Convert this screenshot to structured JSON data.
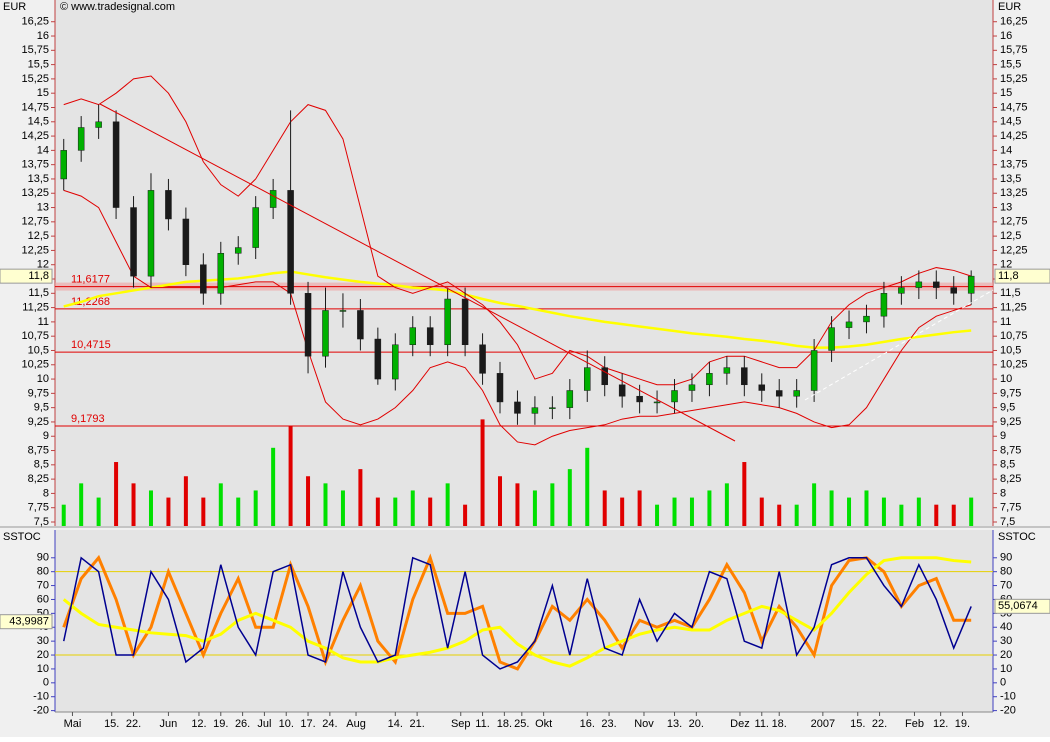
{
  "chart_data": {
    "type": "candlestick",
    "y_label": "EUR",
    "source": "© www.tradesignal.com",
    "x": [
      2,
      6,
      10,
      14,
      18,
      22,
      26,
      30,
      34,
      38,
      42,
      46,
      50,
      54,
      58,
      62,
      66,
      70,
      74,
      78,
      82,
      86,
      90,
      94,
      98,
      102,
      106,
      110,
      114,
      118,
      122,
      126,
      130,
      134,
      138,
      142,
      146,
      150,
      154,
      158,
      162,
      166,
      170,
      174,
      178,
      182,
      186,
      190,
      194,
      198,
      202,
      206,
      210
    ],
    "open": [
      13.5,
      14.0,
      14.4,
      14.5,
      13.0,
      11.8,
      13.3,
      12.8,
      12.0,
      11.5,
      12.2,
      12.3,
      13.0,
      13.3,
      11.5,
      10.4,
      11.2,
      11.2,
      10.7,
      10.0,
      10.6,
      10.9,
      10.6,
      11.4,
      10.6,
      10.1,
      9.6,
      9.4,
      9.5,
      9.5,
      9.8,
      10.2,
      9.9,
      9.7,
      9.6,
      9.6,
      9.8,
      9.9,
      10.1,
      10.2,
      9.9,
      9.8,
      9.7,
      9.8,
      10.5,
      10.9,
      11.0,
      11.1,
      11.5,
      11.6,
      11.7,
      11.6,
      11.5
    ],
    "high": [
      14.2,
      14.6,
      14.8,
      14.7,
      13.2,
      13.6,
      13.5,
      13.0,
      12.2,
      12.4,
      12.5,
      13.2,
      13.5,
      14.7,
      11.7,
      11.6,
      11.5,
      11.4,
      10.9,
      10.8,
      11.1,
      11.1,
      11.6,
      11.6,
      10.8,
      10.3,
      9.8,
      9.7,
      9.7,
      10.0,
      10.5,
      10.4,
      10.1,
      9.9,
      9.8,
      10.0,
      10.1,
      10.3,
      10.4,
      10.4,
      10.1,
      10.0,
      10.0,
      10.7,
      11.1,
      11.2,
      11.3,
      11.7,
      11.8,
      11.9,
      11.9,
      11.8,
      11.9
    ],
    "low": [
      13.3,
      13.8,
      14.2,
      12.8,
      11.6,
      11.6,
      12.6,
      11.8,
      11.3,
      11.3,
      12.0,
      12.1,
      12.8,
      11.3,
      10.1,
      10.2,
      10.9,
      10.5,
      9.9,
      9.8,
      10.4,
      10.4,
      10.4,
      10.4,
      9.9,
      9.4,
      9.2,
      9.2,
      9.3,
      9.3,
      9.6,
      9.7,
      9.5,
      9.4,
      9.4,
      9.4,
      9.6,
      9.7,
      9.9,
      9.7,
      9.6,
      9.5,
      9.5,
      9.6,
      10.3,
      10.7,
      10.8,
      10.9,
      11.3,
      11.4,
      11.4,
      11.3,
      11.3
    ],
    "close": [
      14.0,
      14.4,
      14.5,
      13.0,
      11.8,
      13.3,
      12.8,
      12.0,
      11.5,
      12.2,
      12.3,
      13.0,
      13.3,
      11.5,
      10.4,
      11.2,
      11.2,
      10.7,
      10.0,
      10.6,
      10.9,
      10.6,
      11.4,
      10.6,
      10.1,
      9.6,
      9.4,
      9.5,
      9.5,
      9.8,
      10.2,
      9.9,
      9.7,
      9.6,
      9.6,
      9.8,
      9.9,
      10.1,
      10.2,
      9.9,
      9.8,
      9.7,
      9.8,
      10.5,
      10.9,
      11.0,
      11.1,
      11.5,
      11.6,
      11.7,
      11.6,
      11.5,
      11.8
    ],
    "up_color": "#00b000",
    "down_color": "#1a1a1a",
    "volume": [
      15,
      30,
      20,
      45,
      30,
      25,
      20,
      35,
      20,
      30,
      20,
      25,
      55,
      70,
      35,
      30,
      25,
      40,
      20,
      20,
      25,
      20,
      30,
      15,
      75,
      35,
      30,
      25,
      30,
      40,
      55,
      25,
      20,
      25,
      15,
      20,
      20,
      25,
      30,
      45,
      20,
      15,
      15,
      30,
      25,
      20,
      25,
      20,
      15,
      20,
      15,
      15,
      20
    ],
    "volume_colors": [
      "#00e000",
      "#e00000"
    ],
    "vlim": [
      0,
      370
    ],
    "series": [
      {
        "color": "#ffff00",
        "values": [
          11.27,
          11.35,
          11.45,
          11.5,
          11.55,
          11.6,
          11.65,
          11.7,
          11.72,
          11.74,
          11.76,
          11.8,
          11.85,
          11.88,
          11.83,
          11.78,
          11.74,
          11.7,
          11.67,
          11.64,
          11.6,
          11.58,
          11.55,
          11.48,
          11.4,
          11.33,
          11.28,
          11.22,
          11.16,
          11.1,
          11.05,
          11.0,
          10.96,
          10.92,
          10.88,
          10.84,
          10.8,
          10.77,
          10.74,
          10.7,
          10.67,
          10.63,
          10.58,
          10.55,
          10.55,
          10.57,
          10.6,
          10.65,
          10.7,
          10.74,
          10.78,
          10.82,
          10.85
        ]
      },
      {
        "color": "#e00000",
        "values": [
          14.8,
          14.9,
          14.8,
          15.0,
          15.25,
          15.3,
          15.0,
          14.5,
          13.8,
          13.4,
          13.2,
          13.5,
          14.0,
          14.5,
          14.8,
          14.7,
          14.2,
          13.0,
          11.8,
          11.6,
          11.5,
          11.6,
          11.7,
          11.5,
          11.3,
          11.0,
          10.6,
          10.0,
          10.1,
          10.5,
          10.4,
          10.2,
          10.1,
          10.0,
          9.9,
          9.9,
          10.0,
          10.3,
          10.4,
          10.4,
          10.3,
          10.2,
          10.2,
          10.5,
          11.0,
          11.3,
          11.5,
          11.6,
          11.7,
          11.85,
          11.95,
          11.9,
          11.8
        ]
      },
      {
        "color": "#e00000",
        "values": [
          13.3,
          13.2,
          13.0,
          12.4,
          11.8,
          11.6,
          11.6,
          11.6,
          11.6,
          11.6,
          11.65,
          11.7,
          11.7,
          11.5,
          10.5,
          9.6,
          9.3,
          9.2,
          9.3,
          9.5,
          9.8,
          10.2,
          10.3,
          10.2,
          9.8,
          9.2,
          8.9,
          8.85,
          9.0,
          9.1,
          9.15,
          9.2,
          9.3,
          9.35,
          9.35,
          9.4,
          9.45,
          9.5,
          9.55,
          9.6,
          9.55,
          9.5,
          9.4,
          9.25,
          9.15,
          9.2,
          9.5,
          10.0,
          10.5,
          10.9,
          11.1,
          11.2,
          11.3
        ]
      }
    ],
    "levels": [
      {
        "value": 11.6177,
        "label": "11,6177"
      },
      {
        "value": 11.2268,
        "label": "11,2268"
      },
      {
        "value": 10.4715,
        "label": "10,4715"
      },
      {
        "value": 9.1793,
        "label": "9,1793"
      }
    ],
    "level_color": "#e00000",
    "last": {
      "value": 11.8,
      "label": "11,8"
    },
    "xlim": [
      0,
      215
    ],
    "xticks": [
      {
        "value": 4,
        "label": "Mai"
      },
      {
        "value": 13,
        "label": "15."
      },
      {
        "value": 18,
        "label": "22."
      },
      {
        "value": 26,
        "label": "Jun"
      },
      {
        "value": 33,
        "label": "12."
      },
      {
        "value": 38,
        "label": "19."
      },
      {
        "value": 43,
        "label": "26."
      },
      {
        "value": 48,
        "label": "Jul"
      },
      {
        "value": 53,
        "label": "10."
      },
      {
        "value": 58,
        "label": "17."
      },
      {
        "value": 63,
        "label": "24."
      },
      {
        "value": 69,
        "label": "Aug"
      },
      {
        "value": 78,
        "label": "14."
      },
      {
        "value": 83,
        "label": "21."
      },
      {
        "value": 93,
        "label": "Sep"
      },
      {
        "value": 98,
        "label": "11."
      },
      {
        "value": 103,
        "label": "18."
      },
      {
        "value": 107,
        "label": "25."
      },
      {
        "value": 112,
        "label": "Okt"
      },
      {
        "value": 122,
        "label": "16."
      },
      {
        "value": 127,
        "label": "23."
      },
      {
        "value": 135,
        "label": "Nov"
      },
      {
        "value": 142,
        "label": "13."
      },
      {
        "value": 147,
        "label": "20."
      },
      {
        "value": 157,
        "label": "Dez"
      },
      {
        "value": 162,
        "label": "11."
      },
      {
        "value": 166,
        "label": "18."
      },
      {
        "value": 176,
        "label": "2007"
      },
      {
        "value": 184,
        "label": "15."
      },
      {
        "value": 189,
        "label": "22."
      },
      {
        "value": 197,
        "label": "Feb"
      },
      {
        "value": 203,
        "label": "12."
      },
      {
        "value": 208,
        "label": "19."
      }
    ],
    "ylim": [
      7.43,
      16.63
    ],
    "yticks": [
      {
        "value": 7.5,
        "label": "7,5"
      },
      {
        "value": 7.75,
        "label": "7,75"
      },
      8,
      {
        "value": 8.25,
        "label": "8,25"
      },
      {
        "value": 8.5,
        "label": "8,5"
      },
      {
        "value": 8.75,
        "label": "8,75"
      },
      9,
      {
        "value": 9.25,
        "label": "9,25"
      },
      {
        "value": 9.5,
        "label": "9,5"
      },
      {
        "value": 9.75,
        "label": "9,75"
      },
      10,
      {
        "value": 10.25,
        "label": "10,25"
      },
      {
        "value": 10.5,
        "label": "10,5"
      },
      {
        "value": 10.75,
        "label": "10,75"
      },
      11,
      {
        "value": 11.25,
        "label": "11,25"
      },
      {
        "value": 11.5,
        "label": "11,5"
      },
      {
        "value": 11.75,
        "label": "11,75"
      },
      12,
      {
        "value": 12.25,
        "label": "12,25"
      },
      {
        "value": 12.5,
        "label": "12,5"
      },
      {
        "value": 12.75,
        "label": "12,75"
      },
      13,
      {
        "value": 13.25,
        "label": "13,25"
      },
      {
        "value": 13.5,
        "label": "13,5"
      },
      {
        "value": 13.75,
        "label": "13,75"
      },
      14,
      {
        "value": 14.25,
        "label": "14,25"
      },
      {
        "value": 14.5,
        "label": "14,5"
      },
      {
        "value": 14.75,
        "label": "14,75"
      },
      15,
      {
        "value": 15.25,
        "label": "15,25"
      },
      {
        "value": 15.5,
        "label": "15,5"
      },
      {
        "value": 15.75,
        "label": "15,75"
      },
      16,
      {
        "value": 16.25,
        "label": "16,25"
      }
    ],
    "indicator": {
      "type": "line",
      "label": "SSTOC",
      "series": [
        {
          "color": "#ff8000",
          "values": [
            40,
            75,
            90,
            60,
            20,
            40,
            80,
            50,
            20,
            50,
            75,
            40,
            40,
            85,
            55,
            15,
            45,
            70,
            30,
            15,
            60,
            90,
            50,
            50,
            55,
            15,
            10,
            30,
            55,
            45,
            60,
            45,
            25,
            45,
            40,
            45,
            40,
            60,
            85,
            65,
            30,
            55,
            40,
            20,
            70,
            88,
            90,
            80,
            55,
            70,
            75,
            45,
            45
          ]
        },
        {
          "color": "#ffff00",
          "values": [
            60,
            50,
            42,
            40,
            38,
            36,
            35,
            34,
            30,
            35,
            45,
            50,
            45,
            40,
            30,
            25,
            18,
            15,
            15,
            18,
            20,
            22,
            25,
            30,
            38,
            40,
            28,
            20,
            15,
            12,
            18,
            25,
            30,
            35,
            38,
            40,
            38,
            38,
            45,
            50,
            55,
            52,
            45,
            38,
            50,
            65,
            78,
            88,
            90,
            90,
            90,
            88,
            87
          ]
        },
        {
          "color": "#000090",
          "values": [
            30,
            90,
            80,
            20,
            20,
            80,
            60,
            15,
            25,
            85,
            40,
            20,
            80,
            85,
            20,
            15,
            80,
            40,
            15,
            20,
            90,
            85,
            25,
            80,
            20,
            10,
            15,
            30,
            70,
            20,
            75,
            25,
            20,
            60,
            30,
            50,
            40,
            80,
            75,
            30,
            25,
            80,
            20,
            40,
            85,
            90,
            90,
            70,
            55,
            85,
            60,
            25,
            55
          ]
        }
      ],
      "bands": [
        20,
        80
      ],
      "band_color": "#e6d000",
      "ref": {
        "value": 43.9987,
        "label": "43,9987"
      },
      "last": {
        "value": 55.0674,
        "label": "55,0674"
      },
      "ylim": [
        -21,
        110
      ],
      "yticks": [
        -20,
        -10,
        0,
        10,
        20,
        30,
        40,
        50,
        60,
        70,
        80,
        90
      ]
    }
  }
}
